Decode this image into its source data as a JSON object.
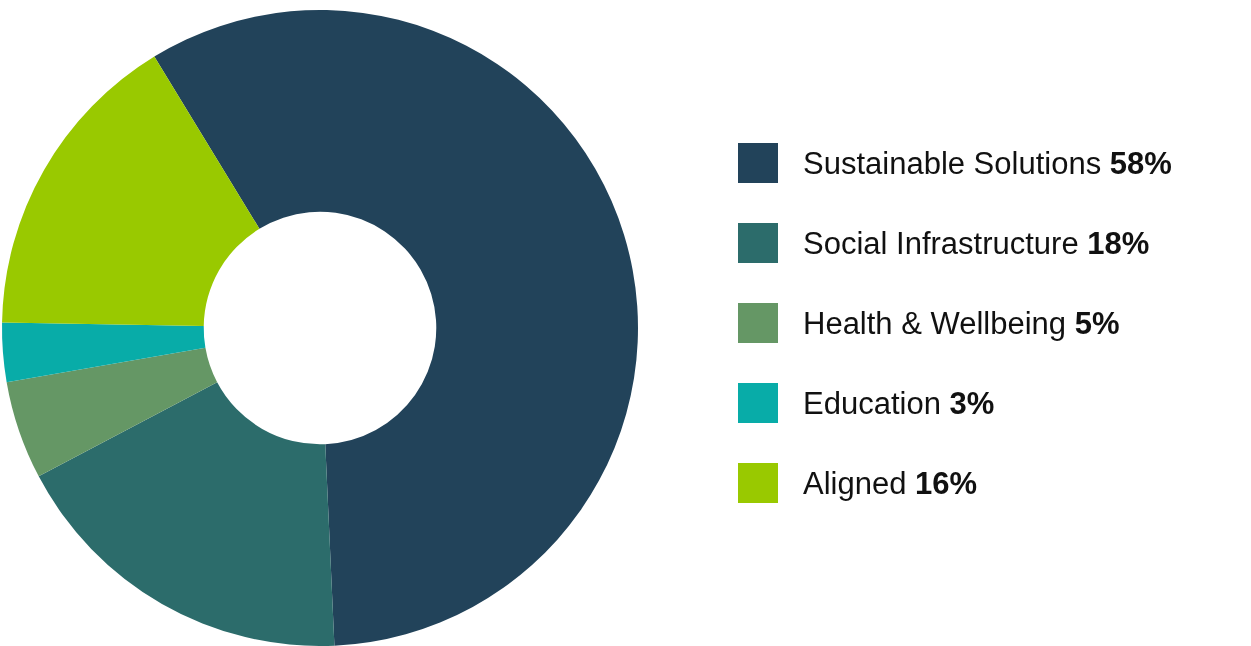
{
  "chart_data": {
    "type": "donut",
    "categories": [
      "Sustainable Solutions",
      "Social Infrastructure",
      "Health & Wellbeing",
      "Education",
      "Aligned"
    ],
    "values": [
      58,
      18,
      5,
      3,
      16
    ],
    "colors": [
      "#22435a",
      "#2c6c6b",
      "#659765",
      "#08aca8",
      "#99c900"
    ],
    "value_labels": [
      "58%",
      "18%",
      "5%",
      "3%",
      "16%"
    ],
    "legend": "right"
  }
}
